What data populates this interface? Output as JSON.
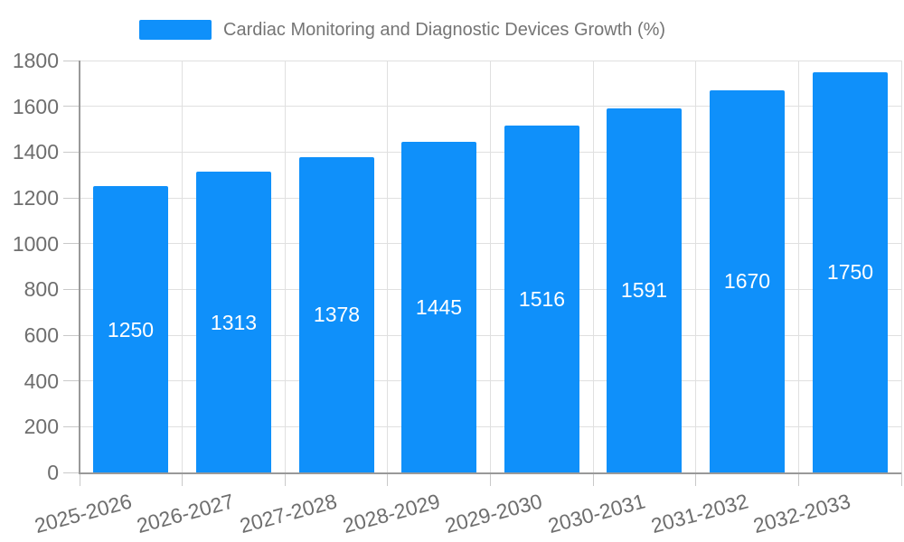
{
  "legend": {
    "label": "Cardiac Monitoring and Diagnostic Devices Growth (%)"
  },
  "chart_data": {
    "type": "bar",
    "title": "Cardiac Monitoring and Diagnostic Devices Growth (%)",
    "series_name": "Cardiac Monitoring and Diagnostic Devices Growth (%)",
    "categories": [
      "2025-2026",
      "2026-2027",
      "2027-2028",
      "2028-2029",
      "2029-2030",
      "2030-2031",
      "2031-2032",
      "2032-2033"
    ],
    "values": [
      1250,
      1313,
      1378,
      1445,
      1516,
      1591,
      1670,
      1750
    ],
    "value_labels": [
      1250,
      1313,
      1378,
      1445,
      1516,
      1591,
      1670,
      1750
    ],
    "xlabel": "",
    "ylabel": "",
    "ylim": [
      0,
      1800
    ],
    "ytick_interval": 200,
    "yticks": [
      0,
      200,
      400,
      600,
      800,
      1000,
      1200,
      1400,
      1600,
      1800
    ],
    "x_label_rotation_deg": 15,
    "legend_position": "top",
    "grid": "both",
    "colors": {
      "bar": "#0f90fa",
      "value_label": "#ffffff",
      "grid_line": "#e0e0e0",
      "axis_line": "#999999",
      "tick": "#c9c9c9",
      "axis_text": "#6e6e6e",
      "legend_text": "#757575",
      "background": "#ffffff"
    }
  }
}
